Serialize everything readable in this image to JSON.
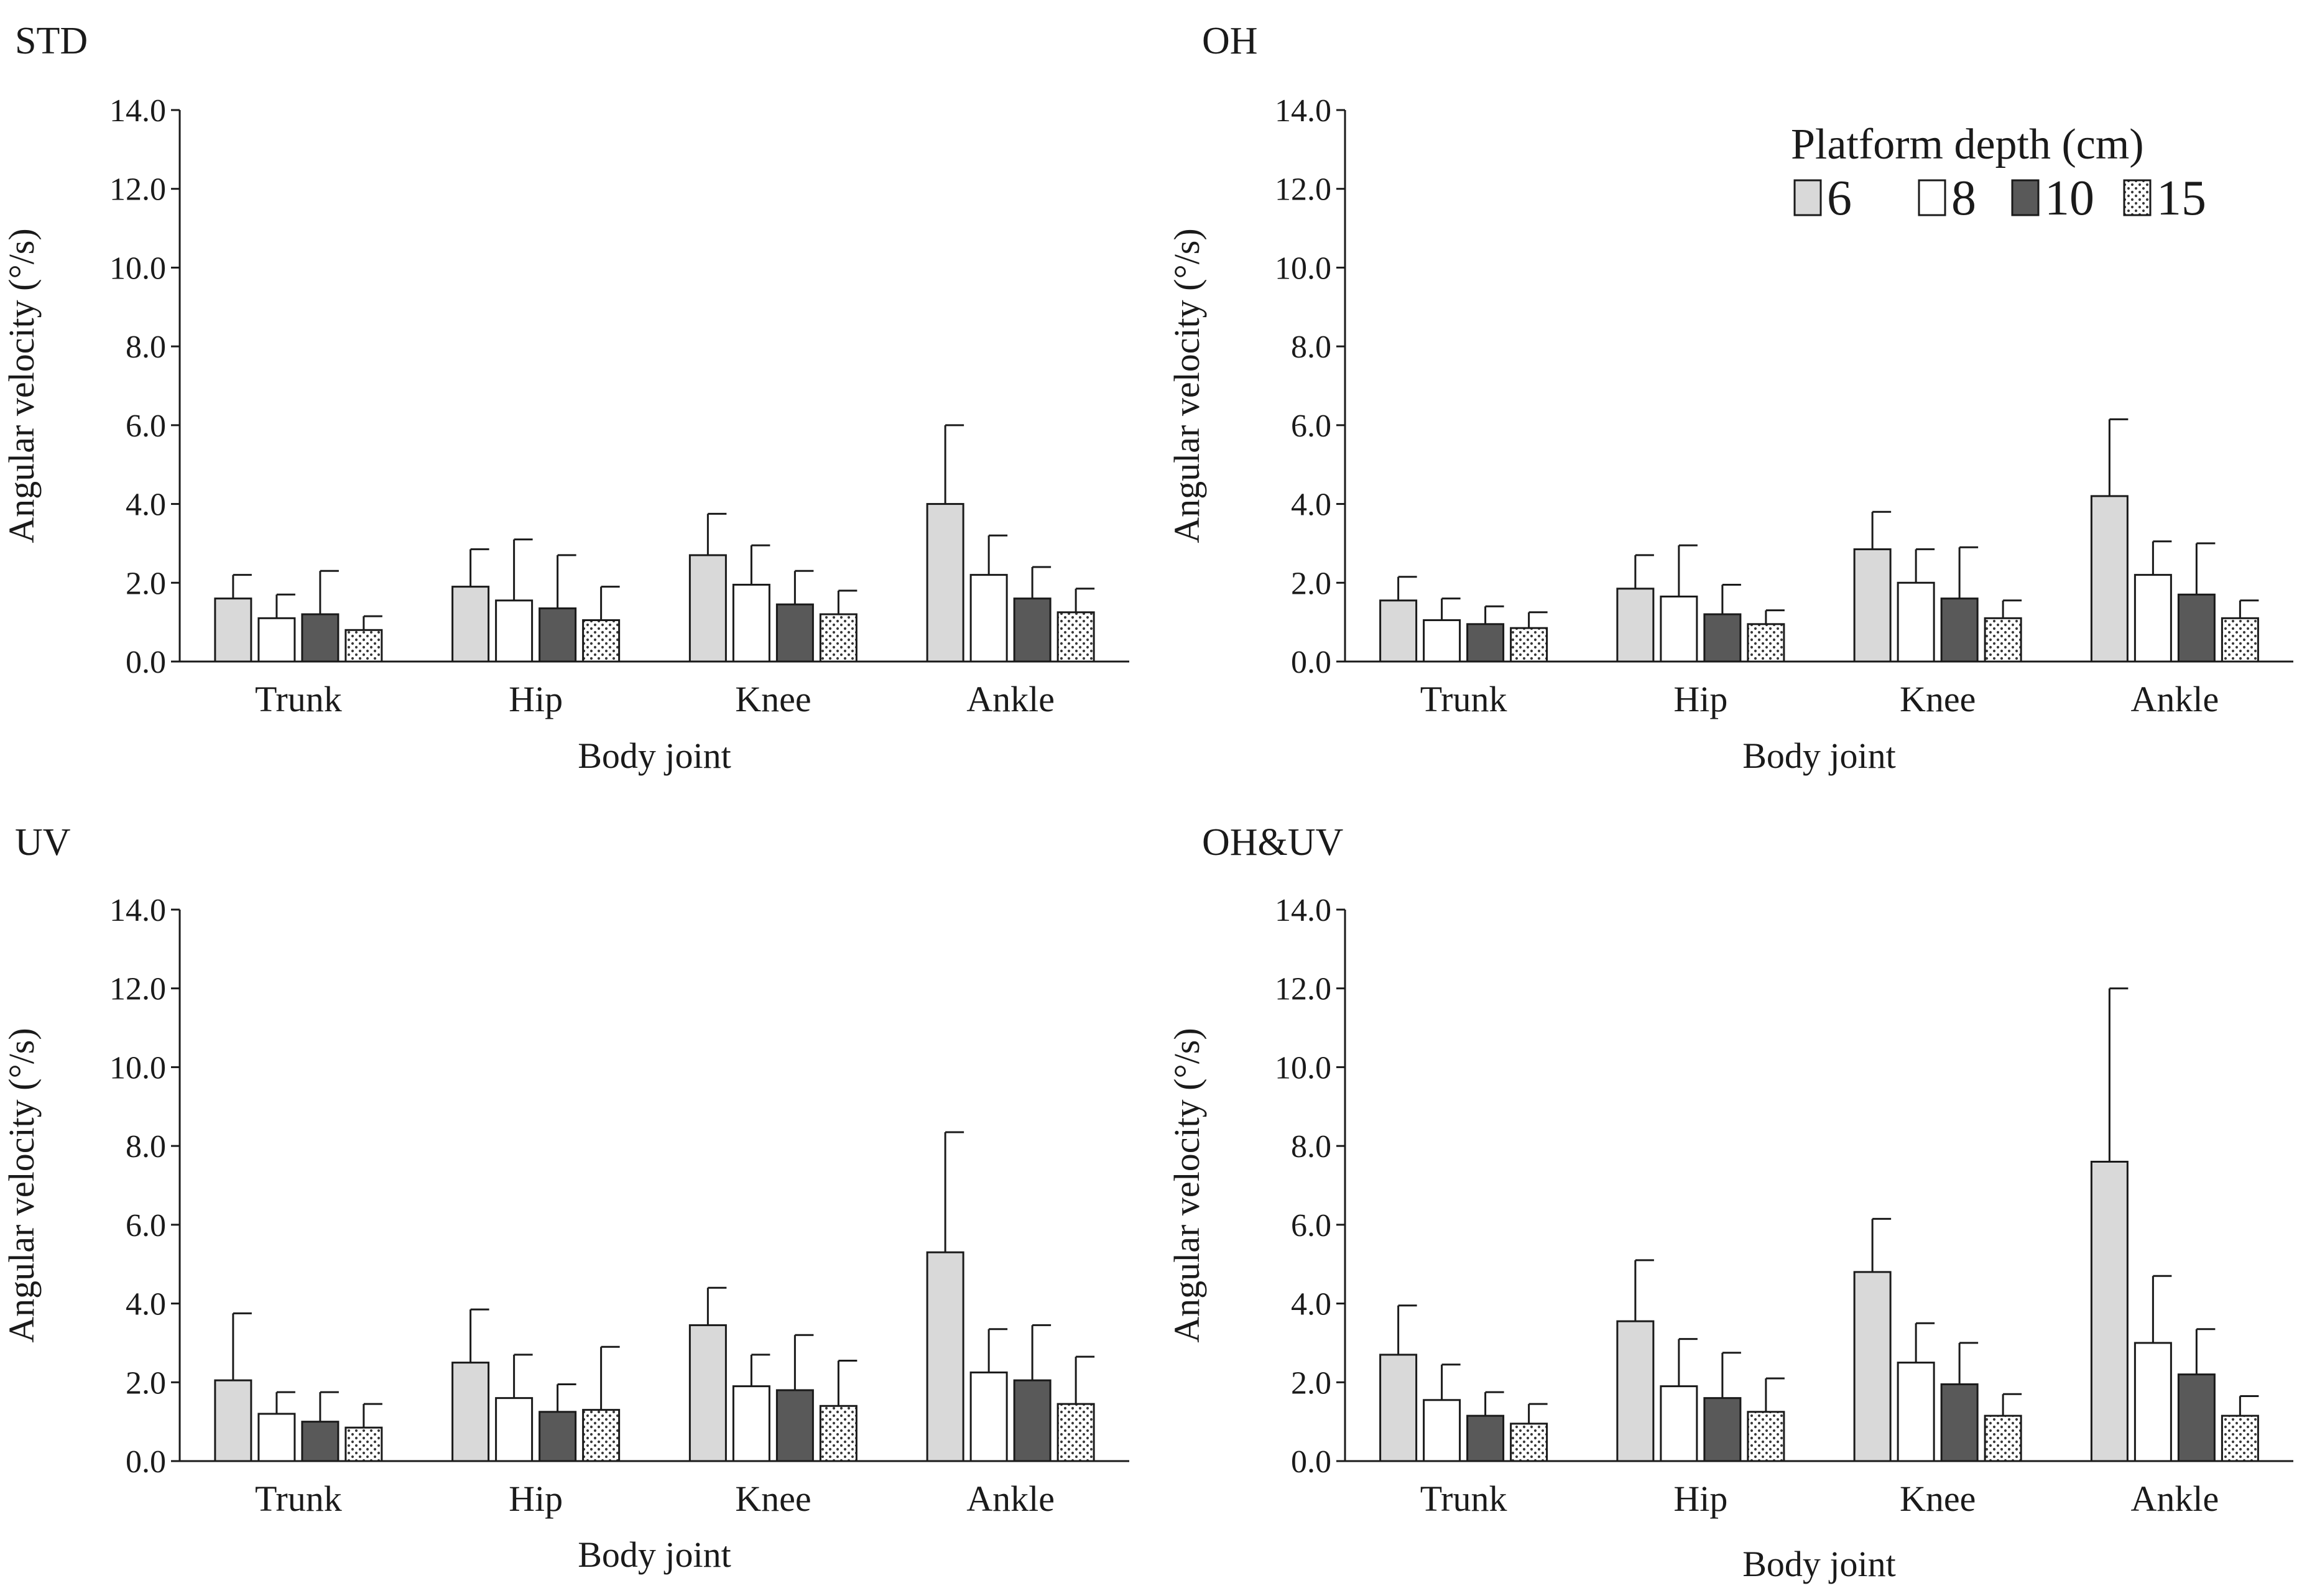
{
  "figure": {
    "legend": {
      "title": "Platform depth (cm)",
      "entries": [
        "6",
        "8",
        "10",
        "15"
      ]
    }
  },
  "colors": {
    "series_6": "#d9d9d9",
    "series_8": "#ffffff",
    "series_10": "#595959",
    "series_15": "dotted-white",
    "stroke": "#1a1a1a"
  },
  "chart_data": [
    {
      "type": "bar",
      "title": "STD",
      "xlabel": "Body joint",
      "ylabel": "Angular velocity (°/s)",
      "ylim": [
        0,
        14
      ],
      "yticks": [
        "0.0",
        "2.0",
        "4.0",
        "6.0",
        "8.0",
        "10.0",
        "12.0",
        "14.0"
      ],
      "categories": [
        "Trunk",
        "Hip",
        "Knee",
        "Ankle"
      ],
      "series": [
        {
          "name": "6",
          "values": [
            1.6,
            1.9,
            2.7,
            4.0
          ],
          "errors": [
            0.6,
            0.95,
            1.05,
            2.0
          ]
        },
        {
          "name": "8",
          "values": [
            1.1,
            1.55,
            1.95,
            2.2
          ],
          "errors": [
            0.6,
            1.55,
            1.0,
            1.0
          ]
        },
        {
          "name": "10",
          "values": [
            1.2,
            1.35,
            1.45,
            1.6
          ],
          "errors": [
            1.1,
            1.35,
            0.85,
            0.8
          ]
        },
        {
          "name": "15",
          "values": [
            0.8,
            1.05,
            1.2,
            1.25
          ],
          "errors": [
            0.35,
            0.85,
            0.6,
            0.6
          ]
        }
      ]
    },
    {
      "type": "bar",
      "title": "OH",
      "xlabel": "Body joint",
      "ylabel": "Angular velocity (°/s)",
      "ylim": [
        0,
        14
      ],
      "yticks": [
        "0.0",
        "2.0",
        "4.0",
        "6.0",
        "8.0",
        "10.0",
        "12.0",
        "14.0"
      ],
      "categories": [
        "Trunk",
        "Hip",
        "Knee",
        "Ankle"
      ],
      "series": [
        {
          "name": "6",
          "values": [
            1.55,
            1.85,
            2.85,
            4.2
          ],
          "errors": [
            0.6,
            0.85,
            0.95,
            1.95
          ]
        },
        {
          "name": "8",
          "values": [
            1.05,
            1.65,
            2.0,
            2.2
          ],
          "errors": [
            0.55,
            1.3,
            0.85,
            0.85
          ]
        },
        {
          "name": "10",
          "values": [
            0.95,
            1.2,
            1.6,
            1.7
          ],
          "errors": [
            0.45,
            0.75,
            1.3,
            1.3
          ]
        },
        {
          "name": "15",
          "values": [
            0.85,
            0.95,
            1.1,
            1.1
          ],
          "errors": [
            0.4,
            0.35,
            0.45,
            0.45
          ]
        }
      ]
    },
    {
      "type": "bar",
      "title": "UV",
      "xlabel": "Body joint",
      "ylabel": "Angular velocity (°/s)",
      "ylim": [
        0,
        14
      ],
      "yticks": [
        "0.0",
        "2.0",
        "4.0",
        "6.0",
        "8.0",
        "10.0",
        "12.0",
        "14.0"
      ],
      "categories": [
        "Trunk",
        "Hip",
        "Knee",
        "Ankle"
      ],
      "series": [
        {
          "name": "6",
          "values": [
            2.05,
            2.5,
            3.45,
            5.3
          ],
          "errors": [
            1.7,
            1.35,
            0.95,
            3.05
          ]
        },
        {
          "name": "8",
          "values": [
            1.2,
            1.6,
            1.9,
            2.25
          ],
          "errors": [
            0.55,
            1.1,
            0.8,
            1.1
          ]
        },
        {
          "name": "10",
          "values": [
            1.0,
            1.25,
            1.8,
            2.05
          ],
          "errors": [
            0.75,
            0.7,
            1.4,
            1.4
          ]
        },
        {
          "name": "15",
          "values": [
            0.85,
            1.3,
            1.4,
            1.45
          ],
          "errors": [
            0.6,
            1.6,
            1.15,
            1.2
          ]
        }
      ]
    },
    {
      "type": "bar",
      "title": "OH&UV",
      "xlabel": "Body joint",
      "ylabel": "Angular velocity (°/s)",
      "ylim": [
        0,
        14
      ],
      "yticks": [
        "0.0",
        "2.0",
        "4.0",
        "6.0",
        "8.0",
        "10.0",
        "12.0",
        "14.0"
      ],
      "categories": [
        "Trunk",
        "Hip",
        "Knee",
        "Ankle"
      ],
      "series": [
        {
          "name": "6",
          "values": [
            2.7,
            3.55,
            4.8,
            7.6
          ],
          "errors": [
            1.25,
            1.55,
            1.35,
            4.4
          ]
        },
        {
          "name": "8",
          "values": [
            1.55,
            1.9,
            2.5,
            3.0
          ],
          "errors": [
            0.9,
            1.2,
            1.0,
            1.7
          ]
        },
        {
          "name": "10",
          "values": [
            1.15,
            1.6,
            1.95,
            2.2
          ],
          "errors": [
            0.6,
            1.15,
            1.05,
            1.15
          ]
        },
        {
          "name": "15",
          "values": [
            0.95,
            1.25,
            1.15,
            1.15
          ],
          "errors": [
            0.5,
            0.85,
            0.55,
            0.5
          ]
        }
      ]
    }
  ]
}
